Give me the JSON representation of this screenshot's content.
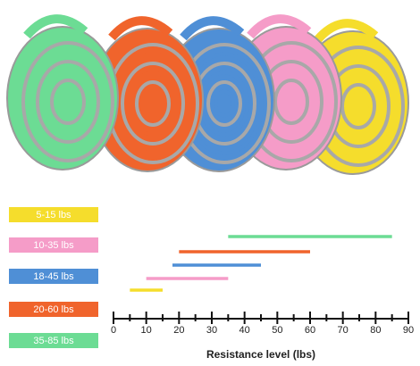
{
  "chart_data": {
    "type": "range-bar",
    "xlabel": "Resistance level (lbs)",
    "xlim": [
      0,
      90
    ],
    "xticks": [
      0,
      10,
      20,
      30,
      40,
      50,
      60,
      70,
      80,
      90
    ],
    "xminorticks": [
      5,
      15,
      25,
      35,
      45,
      55,
      65,
      75,
      85
    ],
    "series": [
      {
        "name": "5-15 lbs",
        "color": "#f5dd2c",
        "values": [
          5,
          15
        ]
      },
      {
        "name": "10-35 lbs",
        "color": "#f59cc8",
        "values": [
          10,
          35
        ]
      },
      {
        "name": "18-45 lbs",
        "color": "#4f8fd6",
        "values": [
          18,
          45
        ]
      },
      {
        "name": "20-60 lbs",
        "color": "#f0642c",
        "values": [
          20,
          60
        ]
      },
      {
        "name": "35-85 lbs",
        "color": "#6cdc94",
        "values": [
          35,
          85
        ]
      }
    ]
  }
}
